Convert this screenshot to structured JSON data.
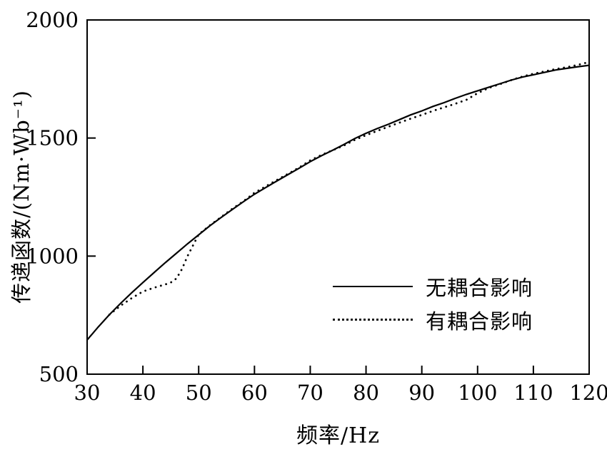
{
  "chart_data": {
    "type": "line",
    "title": "",
    "xlabel": "频率/Hz",
    "ylabel": "传递函数/(Nm·Wb⁻¹)",
    "xlim": [
      30,
      120
    ],
    "ylim": [
      500,
      2000
    ],
    "x_ticks": [
      30,
      40,
      50,
      60,
      70,
      80,
      90,
      100,
      110,
      120
    ],
    "y_ticks": [
      500,
      1000,
      1500,
      2000
    ],
    "grid": false,
    "legend_position": "inside lower right",
    "series": [
      {
        "name": "无耦合影响",
        "style": "solid",
        "x": [
          30,
          32,
          34,
          36,
          38,
          40,
          42,
          44,
          46,
          48,
          50,
          52,
          54,
          56,
          58,
          60,
          62,
          64,
          66,
          68,
          70,
          72,
          74,
          76,
          78,
          80,
          82,
          84,
          86,
          88,
          90,
          92,
          94,
          96,
          98,
          100,
          102,
          104,
          106,
          108,
          110,
          112,
          114,
          116,
          118,
          120
        ],
        "values": [
          645,
          700,
          752,
          800,
          845,
          888,
          930,
          972,
          1012,
          1052,
          1090,
          1128,
          1163,
          1197,
          1230,
          1262,
          1290,
          1318,
          1345,
          1372,
          1400,
          1425,
          1448,
          1472,
          1498,
          1520,
          1540,
          1558,
          1578,
          1598,
          1615,
          1634,
          1650,
          1668,
          1685,
          1700,
          1715,
          1730,
          1745,
          1758,
          1768,
          1778,
          1788,
          1795,
          1802,
          1808
        ]
      },
      {
        "name": "有耦合影响",
        "style": "dotted",
        "x": [
          34,
          36,
          38,
          40,
          42,
          44,
          45,
          46,
          47,
          48,
          50,
          52,
          54,
          56,
          58,
          60,
          62,
          64,
          66,
          68,
          70,
          72,
          74,
          76,
          78,
          80,
          82,
          84,
          86,
          88,
          90,
          92,
          94,
          96,
          98,
          100,
          102,
          104,
          106,
          108,
          110,
          112,
          114,
          116,
          118,
          120
        ],
        "values": [
          752,
          790,
          822,
          850,
          866,
          880,
          888,
          905,
          945,
          1000,
          1092,
          1130,
          1165,
          1200,
          1232,
          1268,
          1295,
          1322,
          1348,
          1375,
          1405,
          1428,
          1448,
          1468,
          1492,
          1512,
          1530,
          1548,
          1565,
          1582,
          1598,
          1615,
          1630,
          1645,
          1662,
          1690,
          1712,
          1728,
          1745,
          1760,
          1772,
          1782,
          1792,
          1800,
          1810,
          1822
        ]
      }
    ]
  },
  "legend": {
    "items": [
      {
        "label": "无耦合影响",
        "style": "solid"
      },
      {
        "label": "有耦合影响",
        "style": "dotted"
      }
    ]
  },
  "colors": {
    "line": "#000000",
    "background": "#ffffff"
  }
}
